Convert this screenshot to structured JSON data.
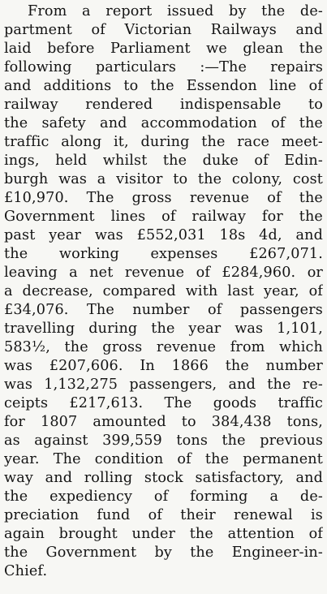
{
  "article": {
    "lines": [
      "From a report issued by the de-",
      "partment of Victorian Railways and",
      "laid before Parliament we glean the",
      "following particulars :—The repairs",
      "and additions to the Essendon line of",
      "railway rendered indispensable to",
      "the safety and accommodation of the",
      "traffic along it, during the race meet-",
      "ings, held whilst the duke of Edin-",
      "burgh was a visitor to the colony, cost",
      "£10,970. The gross revenue of the",
      "Government lines of railway for the",
      "past year was £552,031 18s 4d, and",
      "the working expenses £267,071.",
      "leaving a net revenue of £284,960. or",
      "a decrease, compared with last year, of",
      "£34,076. The number of passengers",
      "travelling during the year was 1,101,",
      "583½, the gross revenue from which",
      "was £207,606. In 1866 the number",
      "was 1,132,275 passengers, and the re-",
      "ceipts £217,613. The goods traffic",
      "for 1807 amounted to 384,438 tons,",
      "as against 399,559 tons the previous",
      "year. The condition of the permanent",
      "way and rolling stock satisfactory, and",
      "the expediency of forming a de-",
      "preciation fund of their renewal is",
      "again brought under the attention of",
      "the Government by the Engineer-in-",
      "Chief."
    ]
  }
}
